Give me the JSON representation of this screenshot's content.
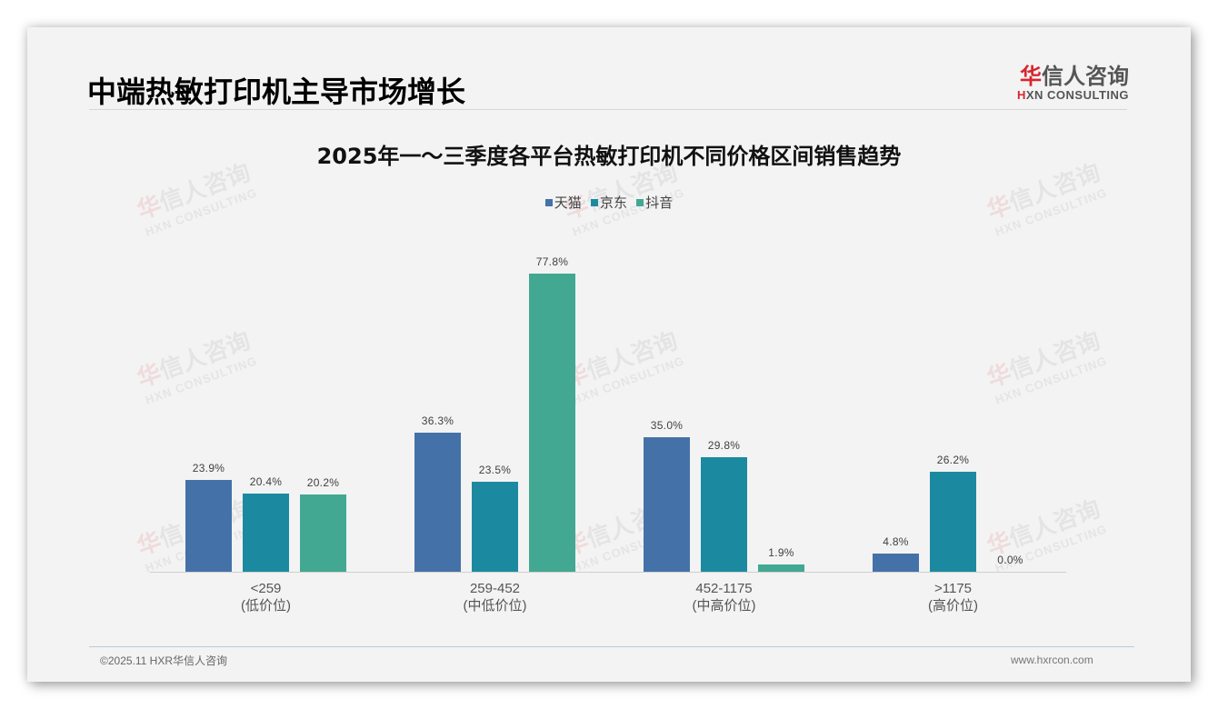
{
  "slide": {
    "title": "中端热敏打印机主导市场增长",
    "logo": {
      "cn_red": "华",
      "cn_rest": "信人咨询",
      "en_red": "H",
      "en_rest": "XN CONSULTING"
    }
  },
  "watermark": {
    "cn_red": "华",
    "cn_rest": "信人咨询",
    "en": "HXN CONSULTING"
  },
  "footer": {
    "copyright": "©2025.11 HXR华信人咨询",
    "website": "www.hxrcon.com"
  },
  "colors": {
    "tmall": "#4472a8",
    "jd": "#1b8aa0",
    "douyin": "#42a892",
    "brand_red": "#d7262d"
  },
  "chart_data": {
    "type": "bar",
    "title": "2025年一～三季度各平台热敏打印机不同价格区间销售趋势",
    "xlabel": "",
    "ylabel": "",
    "ylim": [
      0,
      80
    ],
    "grid": false,
    "legend_position": "top",
    "categories": [
      "<259\n(低价位)",
      "259-452\n(中低价位)",
      "452-1175\n(中高价位)",
      ">1175\n(高价位)"
    ],
    "category_ranges": [
      "<259",
      "259-452",
      "452-1175",
      ">1175"
    ],
    "category_tiers": [
      "(低价位)",
      "(中低价位)",
      "(中高价位)",
      "(高价位)"
    ],
    "series": [
      {
        "name": "天猫",
        "color": "#4472a8",
        "values": [
          23.9,
          36.3,
          35.0,
          4.8
        ],
        "labels": [
          "23.9%",
          "36.3%",
          "35.0%",
          "4.8%"
        ]
      },
      {
        "name": "京东",
        "color": "#1b8aa0",
        "values": [
          20.4,
          23.5,
          29.8,
          26.2
        ],
        "labels": [
          "20.4%",
          "23.5%",
          "29.8%",
          "26.2%"
        ]
      },
      {
        "name": "抖音",
        "color": "#42a892",
        "values": [
          20.2,
          77.8,
          1.9,
          0.0
        ],
        "labels": [
          "20.2%",
          "77.8%",
          "1.9%",
          "0.0%"
        ]
      }
    ]
  }
}
